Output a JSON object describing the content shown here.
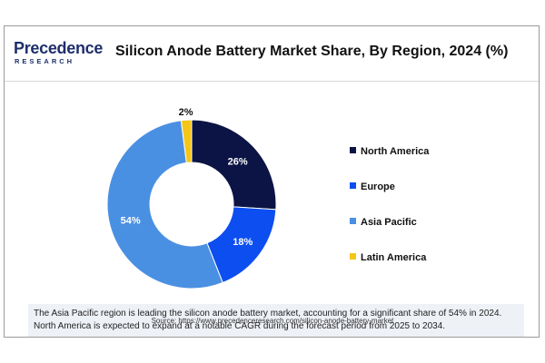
{
  "brand": {
    "name": "Precedence",
    "sub": "RESEARCH",
    "color": "#1f2f6b"
  },
  "title": "Silicon Anode Battery Market Share, By Region, 2024 (%)",
  "chart_data": {
    "type": "pie",
    "title": "Silicon Anode Battery Market Share, By Region, 2024 (%)",
    "categories": [
      "North America",
      "Europe",
      "Asia Pacific",
      "Latin America"
    ],
    "values": [
      26,
      18,
      54,
      2
    ],
    "labels": [
      "26%",
      "18%",
      "54%",
      "2%"
    ],
    "colors": [
      "#0b1444",
      "#0d4ef0",
      "#4a90e2",
      "#f5c518"
    ],
    "label_colors": [
      "#ffffff",
      "#ffffff",
      "#ffffff",
      "#111111"
    ],
    "donut": true,
    "legend_position": "right"
  },
  "note": "The Asia Pacific region is leading the silicon anode battery market, accounting for a significant share of 54% in 2024. North America is expected to expand at a notable CAGR during the forecast period from 2025 to 2034.",
  "source": "Source: https://www.precedenceresearch.com/silicon-anode-battery-market"
}
